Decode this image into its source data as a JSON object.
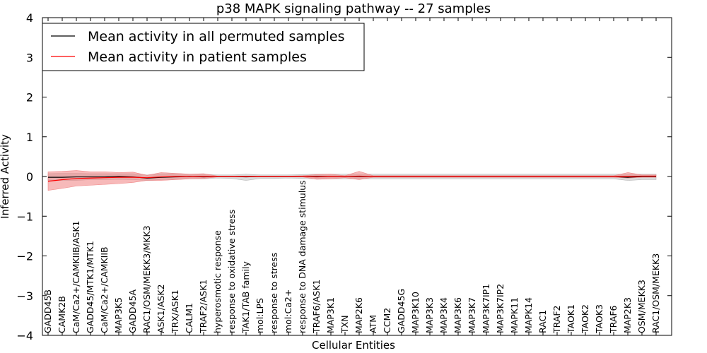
{
  "chart_data": {
    "type": "line",
    "title": "p38 MAPK signaling pathway -- 27 samples",
    "xlabel": "Cellular Entities",
    "ylabel": "Inferred Activity",
    "ylim": [
      -4,
      4
    ],
    "yticks": [
      "4",
      "3",
      "2",
      "1",
      "0",
      "−1",
      "−2",
      "−3",
      "−4"
    ],
    "ytick_values": [
      4,
      3,
      2,
      1,
      0,
      -1,
      -2,
      -3,
      -4
    ],
    "grid": false,
    "legend_position": "top-left",
    "categories": [
      "GADD45B",
      "CAMK2B",
      "CaM/Ca2+/CAMKIIB/ASK1",
      "GADD45/MTK1/MTK1",
      "CaM/Ca2+/CAMKIIB",
      "MAP3K5",
      "GADD45A",
      "RAC1/OSM/MEKK3/MKK3",
      "ASK1/ASK2",
      "TRX/ASK1",
      "CALM1",
      "TRAF2/ASK1",
      "hyperosmotic response",
      "response to oxidative stress",
      "TAK1/TAB family",
      "mol:LPS",
      "response to stress",
      "mol:Ca2+",
      "response to DNA damage stimulus",
      "TRAF6/ASK1",
      "MAP3K1",
      "TXN",
      "MAP2K6",
      "ATM",
      "CCM2",
      "GADD45G",
      "MAP3K10",
      "MAP3K3",
      "MAP3K4",
      "MAP3K6",
      "MAP3K7",
      "MAP3K7IP1",
      "MAP3K7IP2",
      "MAPK11",
      "MAPK14",
      "RAC1",
      "TRAF2",
      "TAOK1",
      "TAOK2",
      "TAOK3",
      "TRAF6",
      "MAP2K3",
      "OSM/MEKK3",
      "RAC1/OSM/MEKK3"
    ],
    "series": [
      {
        "name": "Mean activity in all permuted samples",
        "color": "#000000",
        "band_color": "#b0b0b0",
        "values": [
          -0.02,
          -0.02,
          -0.01,
          -0.01,
          -0.01,
          0.0,
          -0.01,
          -0.04,
          -0.02,
          -0.01,
          0.0,
          -0.01,
          0.0,
          0.0,
          -0.01,
          0.0,
          0.0,
          0.0,
          0.0,
          0.0,
          0.0,
          0.0,
          0.0,
          0.0,
          0.0,
          0.0,
          0.0,
          0.0,
          0.0,
          0.0,
          0.0,
          0.0,
          0.0,
          0.0,
          0.0,
          0.0,
          0.0,
          0.0,
          0.0,
          0.0,
          0.0,
          -0.02,
          0.0,
          0.0
        ],
        "lower": [
          -0.1,
          -0.1,
          -0.1,
          -0.08,
          -0.08,
          -0.07,
          -0.08,
          -0.1,
          -0.08,
          -0.07,
          -0.06,
          -0.06,
          -0.04,
          -0.05,
          -0.1,
          -0.05,
          -0.05,
          -0.04,
          -0.05,
          -0.06,
          -0.06,
          -0.06,
          -0.06,
          -0.06,
          -0.06,
          -0.06,
          -0.06,
          -0.06,
          -0.06,
          -0.06,
          -0.06,
          -0.06,
          -0.06,
          -0.06,
          -0.06,
          -0.06,
          -0.06,
          -0.06,
          -0.06,
          -0.06,
          -0.06,
          -0.1,
          -0.08,
          -0.08
        ],
        "upper": [
          0.07,
          0.08,
          0.08,
          0.07,
          0.07,
          0.07,
          0.07,
          0.04,
          0.07,
          0.07,
          0.06,
          0.06,
          0.04,
          0.04,
          0.06,
          0.04,
          0.04,
          0.04,
          0.05,
          0.06,
          0.06,
          0.06,
          0.06,
          0.06,
          0.06,
          0.06,
          0.06,
          0.06,
          0.06,
          0.06,
          0.06,
          0.06,
          0.06,
          0.06,
          0.06,
          0.06,
          0.06,
          0.06,
          0.06,
          0.06,
          0.06,
          0.06,
          0.06,
          0.06
        ]
      },
      {
        "name": "Mean activity in patient samples",
        "color": "#ff0000",
        "band_color": "#f08080",
        "values": [
          -0.12,
          -0.08,
          -0.05,
          -0.04,
          -0.03,
          -0.02,
          -0.02,
          -0.03,
          -0.01,
          0.0,
          0.0,
          0.0,
          0.0,
          0.0,
          0.0,
          0.0,
          0.0,
          0.0,
          0.0,
          -0.01,
          0.0,
          0.0,
          0.01,
          0.0,
          0.0,
          0.0,
          0.0,
          0.0,
          0.0,
          0.0,
          0.0,
          0.0,
          0.0,
          0.0,
          0.0,
          0.0,
          0.0,
          0.0,
          0.0,
          0.0,
          0.0,
          0.0,
          0.01,
          0.01
        ],
        "lower": [
          -0.35,
          -0.3,
          -0.24,
          -0.22,
          -0.2,
          -0.18,
          -0.15,
          -0.1,
          -0.1,
          -0.08,
          -0.06,
          -0.05,
          -0.01,
          -0.01,
          -0.01,
          -0.01,
          -0.01,
          -0.01,
          -0.01,
          -0.07,
          -0.06,
          -0.03,
          -0.08,
          -0.02,
          -0.02,
          -0.02,
          -0.02,
          -0.02,
          -0.02,
          -0.02,
          -0.02,
          -0.02,
          -0.02,
          -0.02,
          -0.02,
          -0.02,
          -0.02,
          -0.02,
          -0.02,
          -0.02,
          -0.02,
          -0.04,
          -0.02,
          -0.02
        ],
        "upper": [
          0.12,
          0.13,
          0.15,
          0.12,
          0.12,
          0.1,
          0.11,
          0.03,
          0.1,
          0.08,
          0.06,
          0.07,
          0.01,
          0.01,
          0.01,
          0.01,
          0.01,
          0.01,
          0.02,
          0.05,
          0.06,
          0.02,
          0.13,
          0.02,
          0.02,
          0.02,
          0.02,
          0.02,
          0.02,
          0.02,
          0.02,
          0.02,
          0.02,
          0.02,
          0.02,
          0.02,
          0.02,
          0.02,
          0.02,
          0.02,
          0.02,
          0.1,
          0.04,
          0.04
        ]
      }
    ]
  }
}
